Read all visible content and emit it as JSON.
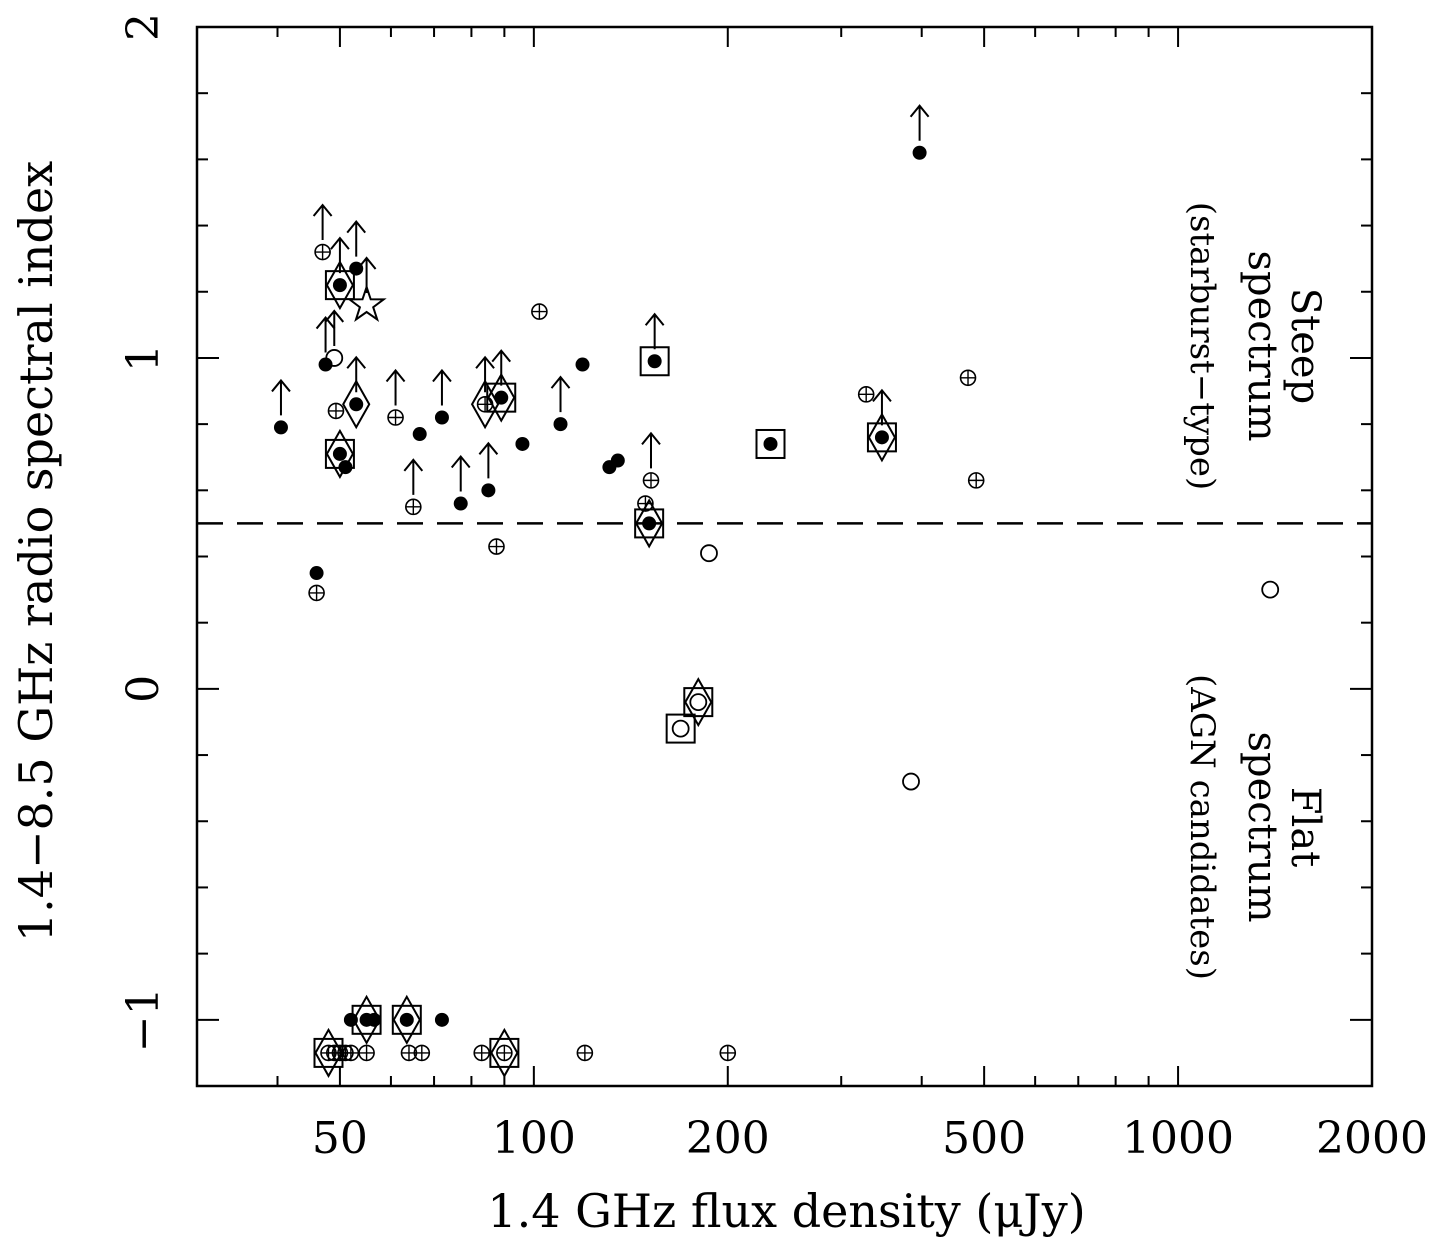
{
  "chart_data": {
    "type": "scatter",
    "title": "",
    "xlabel": "1.4 GHz flux density (μJy)",
    "ylabel": "1.4−8.5 GHz radio spectral index",
    "xscale": "log",
    "xlim": [
      30,
      2000
    ],
    "ylim": [
      -1.2,
      2.0
    ],
    "xticks": [
      {
        "value": 50,
        "label": "50"
      },
      {
        "value": 100,
        "label": "100"
      },
      {
        "value": 200,
        "label": "200"
      },
      {
        "value": 500,
        "label": "500"
      },
      {
        "value": 1000,
        "label": "1000"
      },
      {
        "value": 2000,
        "label": "2000"
      }
    ],
    "yticks": [
      {
        "value": -1,
        "label": "−1"
      },
      {
        "value": 0,
        "label": "0"
      },
      {
        "value": 1,
        "label": "1"
      },
      {
        "value": 2,
        "label": "2"
      }
    ],
    "divider": {
      "y": 0.5,
      "style": "dashed"
    },
    "annotations": {
      "steep": [
        "Steep",
        "spectrum",
        "(starburst−type)"
      ],
      "flat": [
        "Flat",
        "spectrum",
        "(AGN candidates)"
      ]
    },
    "marker_types": [
      "filled",
      "open",
      "crossed",
      "star"
    ],
    "points": [
      {
        "x": 40.5,
        "y": 0.79,
        "m": "filled",
        "lim": true
      },
      {
        "x": 46,
        "y": 0.35,
        "m": "filled"
      },
      {
        "x": 46,
        "y": 0.29,
        "m": "crossed"
      },
      {
        "x": 47,
        "y": 1.32,
        "m": "crossed",
        "lim": true
      },
      {
        "x": 47.5,
        "y": 0.98,
        "m": "filled",
        "lim": true
      },
      {
        "x": 49,
        "y": 1.0,
        "m": "open",
        "lim": true
      },
      {
        "x": 49.3,
        "y": 0.84,
        "m": "crossed"
      },
      {
        "x": 50,
        "y": 1.22,
        "m": "filled",
        "box": true,
        "diamond": true,
        "lim": true
      },
      {
        "x": 50,
        "y": 0.71,
        "m": "filled",
        "box": true,
        "diamond": true
      },
      {
        "x": 51,
        "y": 0.67,
        "m": "filled"
      },
      {
        "x": 53,
        "y": 1.27,
        "m": "filled",
        "lim": true
      },
      {
        "x": 53,
        "y": 0.86,
        "m": "filled",
        "diamond": true,
        "lim": true
      },
      {
        "x": 55,
        "y": 1.16,
        "m": "star",
        "lim": true
      },
      {
        "x": 61,
        "y": 0.82,
        "m": "crossed",
        "lim": true
      },
      {
        "x": 65,
        "y": 0.55,
        "m": "crossed",
        "lim": true
      },
      {
        "x": 66.5,
        "y": 0.77,
        "m": "filled"
      },
      {
        "x": 72,
        "y": 0.82,
        "m": "filled",
        "lim": true
      },
      {
        "x": 77,
        "y": 0.56,
        "m": "filled",
        "lim": true
      },
      {
        "x": 84,
        "y": 0.86,
        "m": "crossed",
        "diamond": true,
        "lim": true
      },
      {
        "x": 85,
        "y": 0.6,
        "m": "filled",
        "lim": true
      },
      {
        "x": 87.5,
        "y": 0.43,
        "m": "crossed"
      },
      {
        "x": 89,
        "y": 0.88,
        "m": "filled",
        "box": true,
        "diamond": true,
        "lim": true
      },
      {
        "x": 96,
        "y": 0.74,
        "m": "filled"
      },
      {
        "x": 102,
        "y": 1.14,
        "m": "crossed"
      },
      {
        "x": 110,
        "y": 0.8,
        "m": "filled",
        "lim": true
      },
      {
        "x": 119,
        "y": 0.98,
        "m": "filled"
      },
      {
        "x": 131,
        "y": 0.67,
        "m": "filled"
      },
      {
        "x": 135,
        "y": 0.69,
        "m": "filled"
      },
      {
        "x": 149,
        "y": 0.56,
        "m": "crossed"
      },
      {
        "x": 152,
        "y": 0.63,
        "m": "crossed",
        "lim": true
      },
      {
        "x": 151,
        "y": 0.5,
        "m": "filled",
        "box": true,
        "diamond": true
      },
      {
        "x": 154,
        "y": 0.99,
        "m": "filled",
        "box": true,
        "lim": true
      },
      {
        "x": 169,
        "y": -0.12,
        "m": "open",
        "box": true
      },
      {
        "x": 180,
        "y": -0.04,
        "m": "open",
        "box": true,
        "diamond": true
      },
      {
        "x": 187,
        "y": 0.41,
        "m": "open"
      },
      {
        "x": 233,
        "y": 0.74,
        "m": "filled",
        "box": true
      },
      {
        "x": 328,
        "y": 0.89,
        "m": "crossed"
      },
      {
        "x": 347,
        "y": 0.76,
        "m": "filled",
        "box": true,
        "diamond": true,
        "lim": true
      },
      {
        "x": 385,
        "y": -0.28,
        "m": "open"
      },
      {
        "x": 397,
        "y": 1.62,
        "m": "filled",
        "lim": true
      },
      {
        "x": 472,
        "y": 0.94,
        "m": "crossed"
      },
      {
        "x": 486,
        "y": 0.63,
        "m": "crossed"
      },
      {
        "x": 1390,
        "y": 0.3,
        "m": "open"
      },
      {
        "x": 48,
        "y": -1.1,
        "m": "crossed",
        "box": true,
        "diamond": true
      },
      {
        "x": 49,
        "y": -1.1,
        "m": "crossed"
      },
      {
        "x": 50,
        "y": -1.1,
        "m": "crossed"
      },
      {
        "x": 51,
        "y": -1.1,
        "m": "crossed"
      },
      {
        "x": 52,
        "y": -1.1,
        "m": "crossed"
      },
      {
        "x": 52,
        "y": -1.0,
        "m": "filled"
      },
      {
        "x": 55,
        "y": -1.0,
        "m": "filled",
        "box": true,
        "diamond": true
      },
      {
        "x": 55,
        "y": -1.1,
        "m": "crossed"
      },
      {
        "x": 56.5,
        "y": -1.0,
        "m": "filled"
      },
      {
        "x": 63.5,
        "y": -1.0,
        "m": "filled",
        "box": true,
        "diamond": true
      },
      {
        "x": 64,
        "y": -1.1,
        "m": "crossed"
      },
      {
        "x": 67,
        "y": -1.1,
        "m": "crossed"
      },
      {
        "x": 72,
        "y": -1.0,
        "m": "filled"
      },
      {
        "x": 83,
        "y": -1.1,
        "m": "crossed"
      },
      {
        "x": 90,
        "y": -1.1,
        "m": "crossed",
        "box": true,
        "diamond": true
      },
      {
        "x": 120,
        "y": -1.1,
        "m": "crossed"
      },
      {
        "x": 200,
        "y": -1.1,
        "m": "crossed"
      }
    ]
  }
}
